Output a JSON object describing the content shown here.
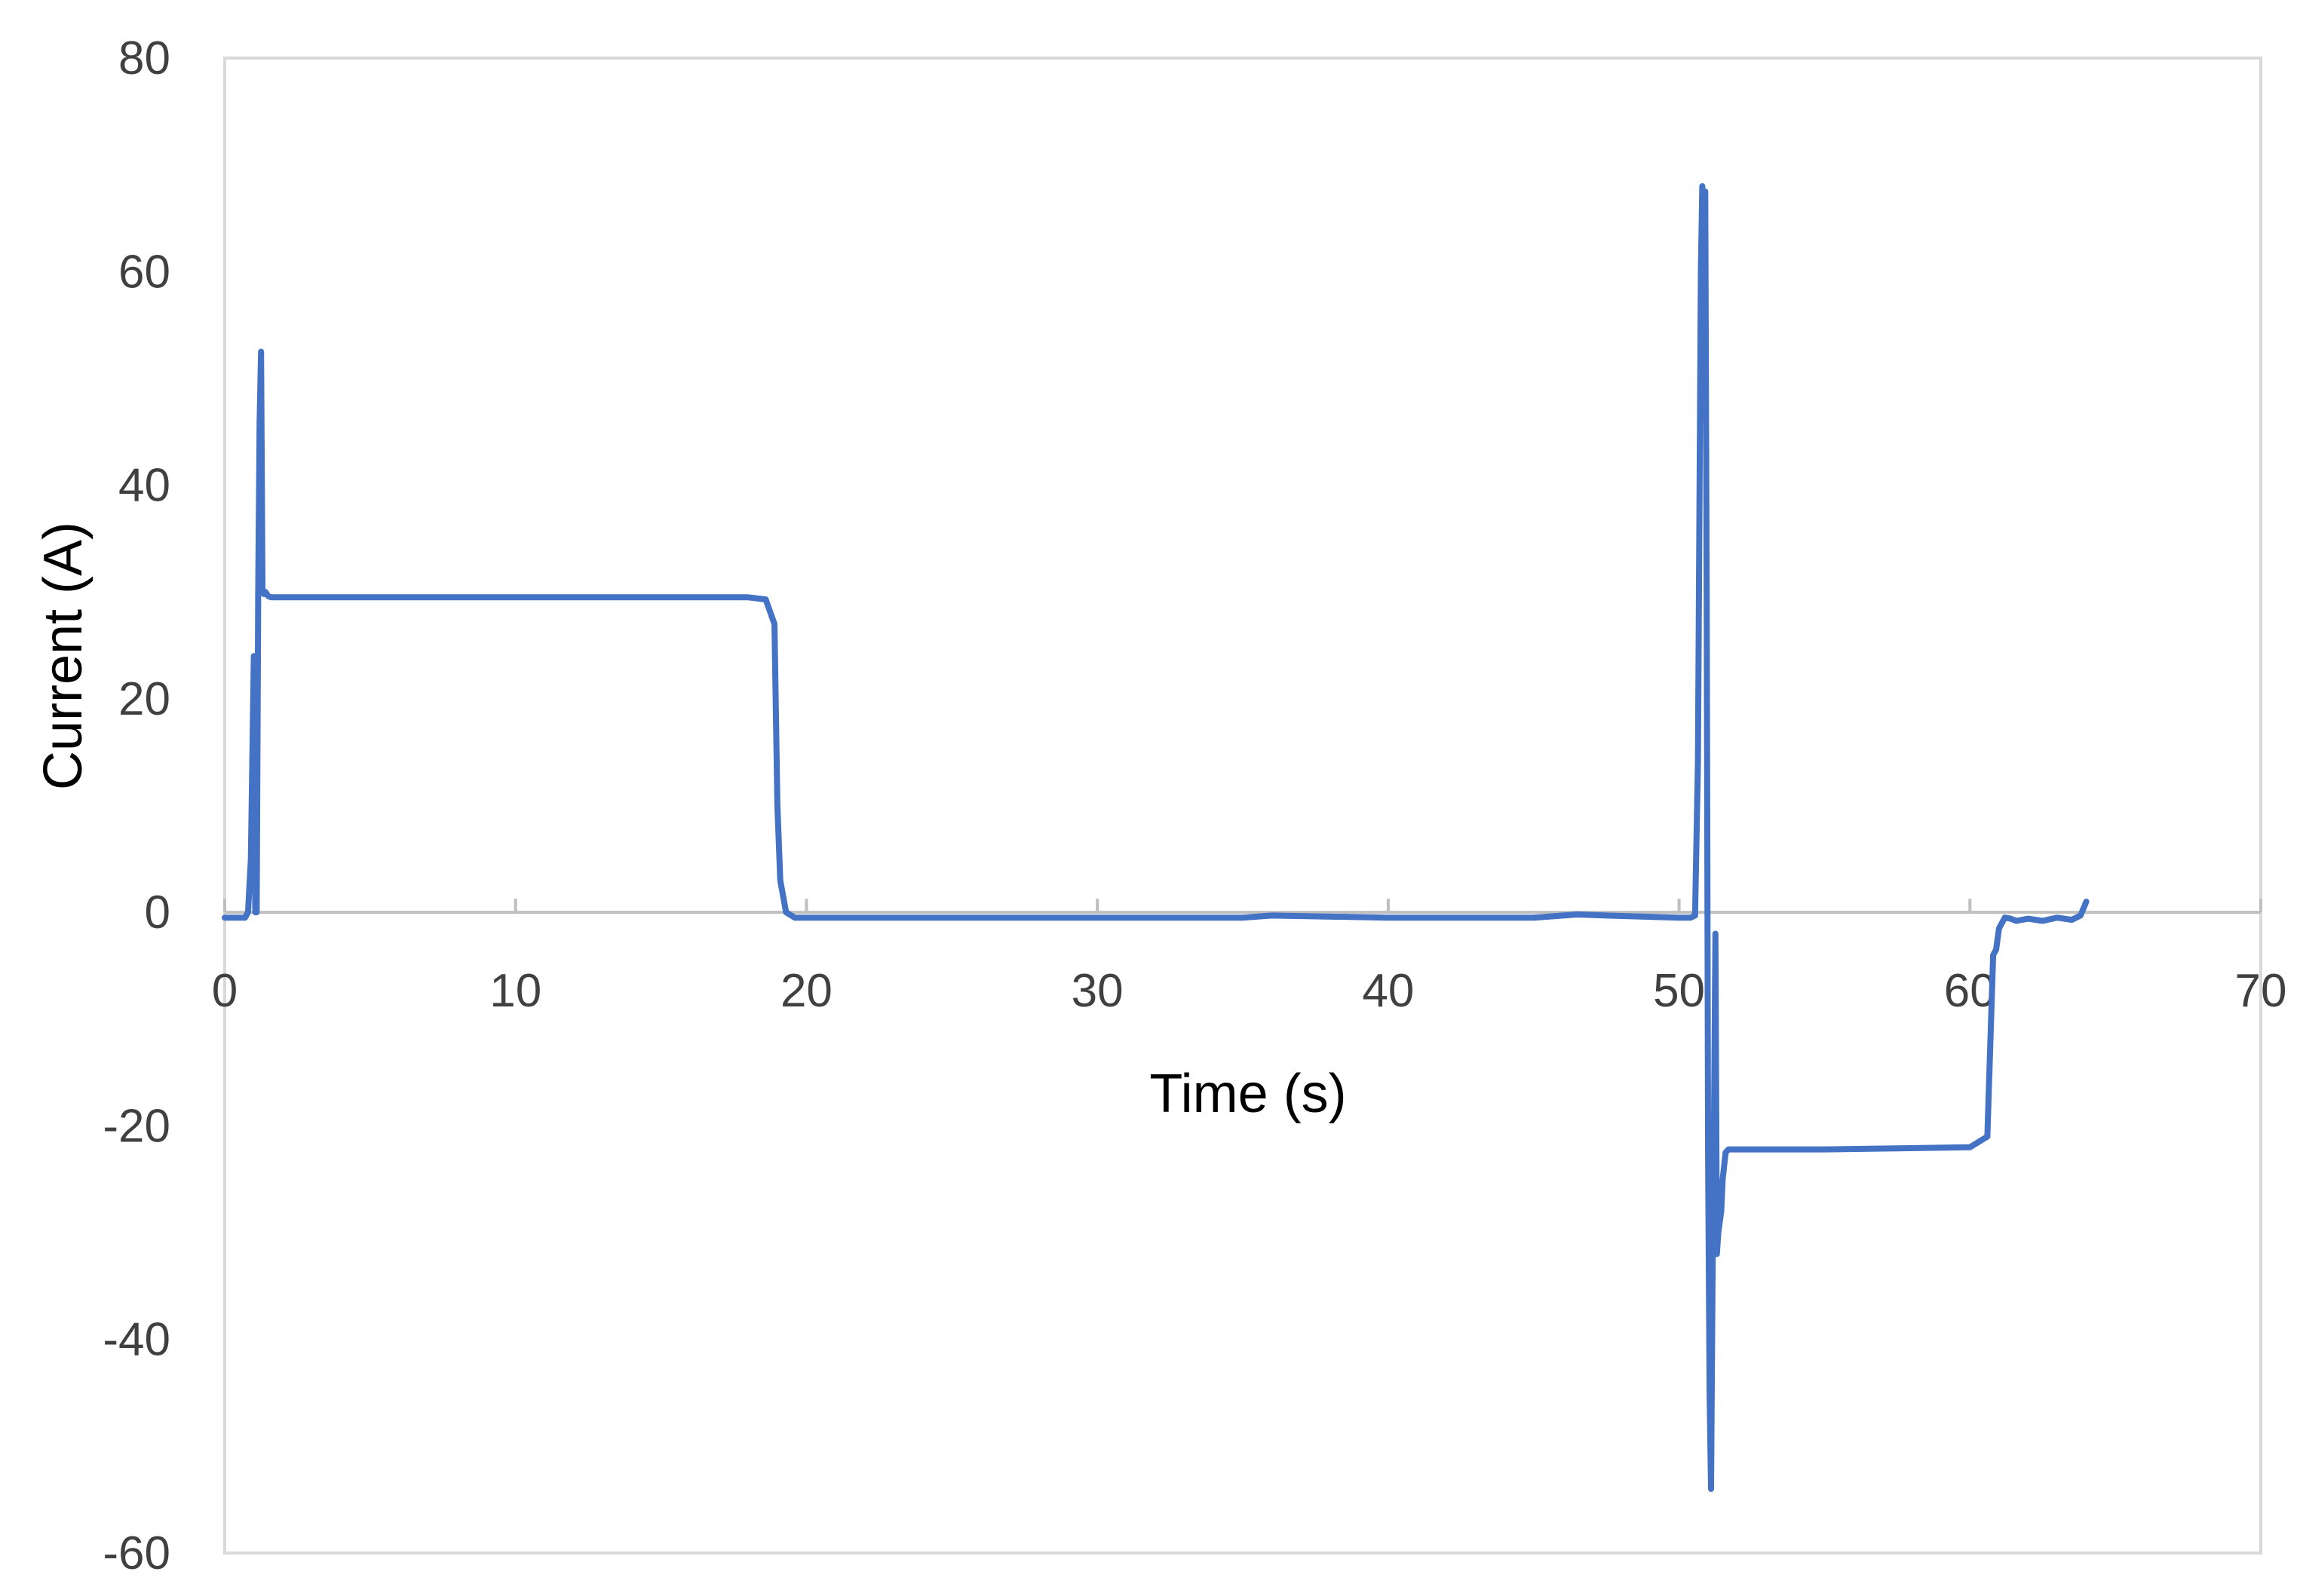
{
  "chart_data": {
    "type": "line",
    "title": "",
    "xlabel": "Time (s)",
    "ylabel": "Current (A)",
    "xlim": [
      0,
      70
    ],
    "ylim": [
      -60,
      80
    ],
    "xticks": [
      0,
      10,
      20,
      30,
      40,
      50,
      60,
      70
    ],
    "yticks": [
      -60,
      -40,
      -20,
      0,
      20,
      40,
      60,
      80
    ],
    "grid": false,
    "legend": "none",
    "colors": {
      "line": "#4472C4",
      "axis": "#BFBFBF",
      "frame": "#D9D9D9"
    },
    "series": [
      {
        "x": [
          0,
          0.5,
          0.7,
          0.8,
          0.9,
          1.0,
          1.05,
          1.1,
          1.15,
          1.2,
          1.25,
          1.3,
          1.35,
          1.4,
          1.45,
          1.5,
          1.6,
          1.8,
          2.0,
          5.0,
          10.0,
          15.0,
          18.0,
          18.6,
          18.9,
          19.0,
          19.1,
          19.3,
          19.6,
          20.0,
          25.0,
          30.0,
          35.0,
          36.0,
          40.0,
          45.0,
          46.5,
          47.5,
          50.0,
          50.4,
          50.55,
          50.65,
          50.75,
          50.8,
          50.85,
          50.9,
          50.95,
          51.0,
          51.05,
          51.1,
          51.15,
          51.2,
          51.25,
          51.3,
          51.35,
          51.45,
          51.5,
          51.6,
          51.7,
          51.8,
          51.9,
          52.1,
          55.0,
          60.0,
          60.6,
          60.8,
          60.9,
          61.0,
          61.2,
          61.4,
          61.6,
          62.0,
          62.5,
          63.0,
          63.5,
          63.8,
          64.0
        ],
        "y": [
          -0.5,
          -0.5,
          -0.5,
          0.0,
          5.0,
          24.0,
          0.0,
          0.0,
          30.0,
          46.0,
          52.5,
          30.0,
          29.8,
          30.0,
          29.8,
          29.6,
          29.5,
          29.5,
          29.5,
          29.5,
          29.5,
          29.5,
          29.5,
          29.3,
          27.0,
          10.0,
          3.0,
          0.0,
          -0.5,
          -0.5,
          -0.5,
          -0.5,
          -0.5,
          -0.3,
          -0.5,
          -0.5,
          -0.2,
          -0.3,
          -0.5,
          -0.5,
          -0.3,
          14.0,
          60.0,
          68.0,
          62.0,
          67.5,
          30.0,
          -23.0,
          -45.0,
          -54.0,
          -35.0,
          -20.0,
          -2.0,
          -32.0,
          -30.0,
          -28.0,
          -25.0,
          -22.5,
          -22.2,
          -22.2,
          -22.2,
          -22.2,
          -22.2,
          -22.0,
          -21.0,
          -4.0,
          -3.5,
          -1.5,
          -0.5,
          -0.6,
          -0.8,
          -0.6,
          -0.8,
          -0.5,
          -0.7,
          -0.3,
          1.0
        ]
      }
    ]
  }
}
